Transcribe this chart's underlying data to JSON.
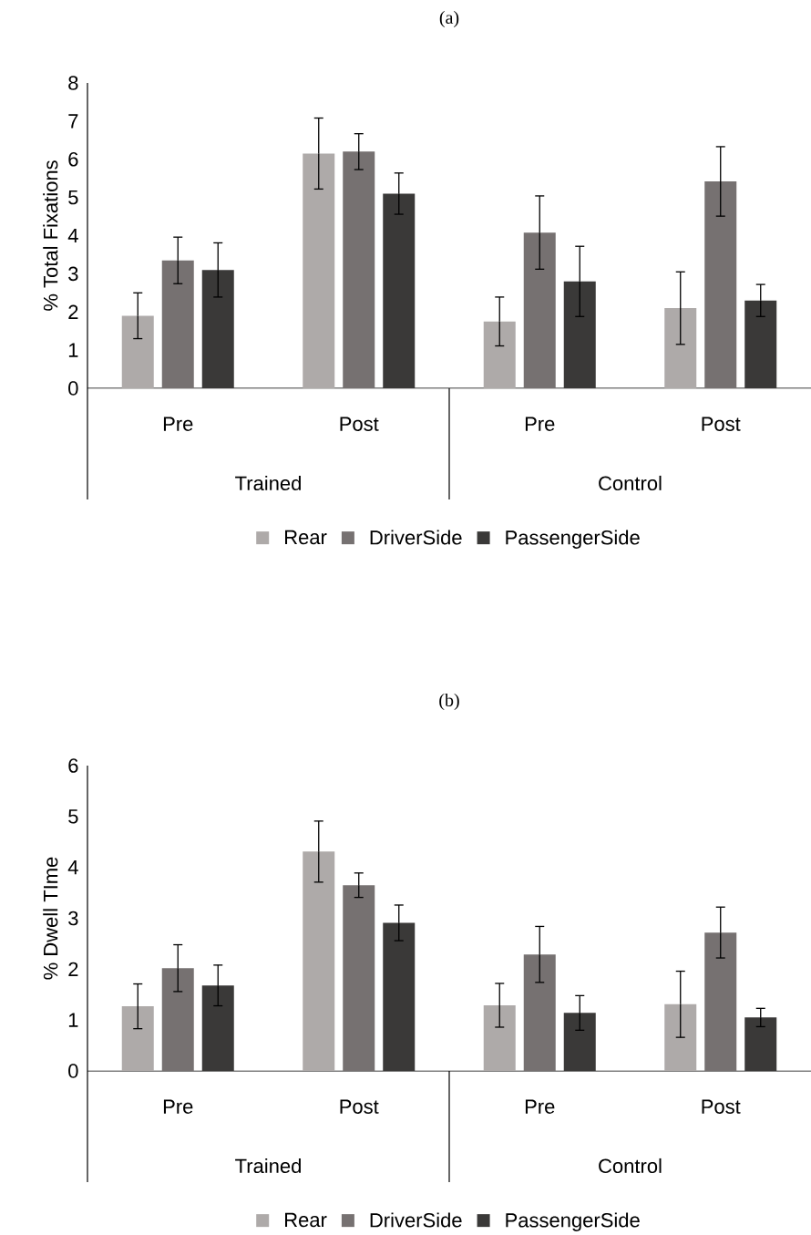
{
  "chart_data": [
    {
      "type": "bar",
      "title": "(a)",
      "ylabel": "% Total Fixations",
      "categories": [
        "Pre",
        "Post",
        "Pre",
        "Post"
      ],
      "annotations": [
        "Trained",
        "Control"
      ],
      "series": [
        {
          "name": "Rear",
          "color": "#aeaaa9",
          "values": [
            1.9,
            6.15,
            1.75,
            2.1
          ],
          "errors": [
            0.6,
            0.93,
            0.64,
            0.95
          ]
        },
        {
          "name": "DriverSide",
          "color": "#767171",
          "values": [
            3.35,
            6.2,
            4.08,
            5.42
          ],
          "errors": [
            0.61,
            0.47,
            0.96,
            0.91
          ]
        },
        {
          "name": "PassengerSide",
          "color": "#3a3938",
          "values": [
            3.1,
            5.1,
            2.8,
            2.3
          ],
          "errors": [
            0.71,
            0.54,
            0.92,
            0.42
          ]
        }
      ],
      "ylim": [
        0,
        8
      ],
      "yticks": [
        0,
        1,
        2,
        3,
        4,
        5,
        6,
        7,
        8
      ],
      "legend": "bottom",
      "grid": false
    },
    {
      "type": "bar",
      "title": "(b)",
      "ylabel": "% Dwell TIme",
      "categories": [
        "Pre",
        "Post",
        "Pre",
        "Post"
      ],
      "annotations": [
        "Trained",
        "Control"
      ],
      "series": [
        {
          "name": "Rear",
          "color": "#aeaaa9",
          "values": [
            1.27,
            4.31,
            1.29,
            1.31
          ],
          "errors": [
            0.44,
            0.6,
            0.43,
            0.65
          ]
        },
        {
          "name": "DriverSide",
          "color": "#767171",
          "values": [
            2.02,
            3.65,
            2.29,
            2.72
          ],
          "errors": [
            0.46,
            0.24,
            0.55,
            0.5
          ]
        },
        {
          "name": "PassengerSide",
          "color": "#3a3938",
          "values": [
            1.68,
            2.91,
            1.14,
            1.05
          ],
          "errors": [
            0.4,
            0.35,
            0.34,
            0.18
          ]
        }
      ],
      "ylim": [
        0,
        6
      ],
      "yticks": [
        0,
        1,
        2,
        3,
        4,
        5,
        6
      ],
      "legend": "bottom",
      "grid": false
    }
  ]
}
